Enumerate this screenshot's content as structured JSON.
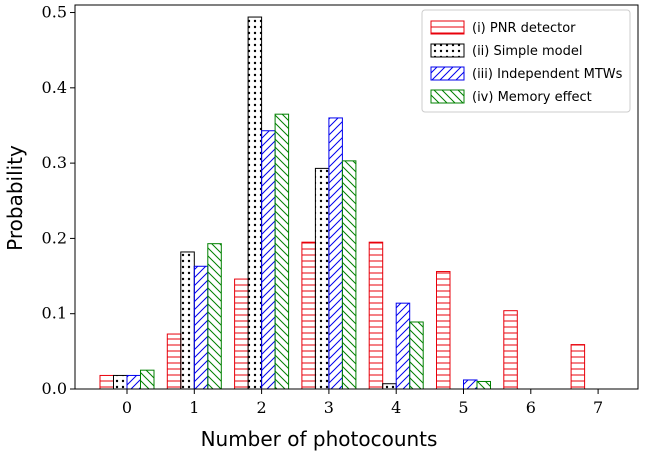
{
  "chart_data": {
    "type": "bar",
    "xlabel": "Number of photocounts",
    "ylabel": "Probability",
    "categories": [
      "0",
      "1",
      "2",
      "3",
      "4",
      "5",
      "6",
      "7"
    ],
    "ylim": [
      0,
      0.51
    ],
    "yticks": [
      "0.0",
      "0.1",
      "0.2",
      "0.3",
      "0.4",
      "0.5"
    ],
    "grid": false,
    "legend_position": "top-right",
    "series": [
      {
        "name": "(i) PNR detector",
        "color": "#e8000b",
        "hatch": "horizontal",
        "values": [
          0.018,
          0.073,
          0.146,
          0.195,
          0.195,
          0.156,
          0.104,
          0.059
        ]
      },
      {
        "name": "(ii) Simple model",
        "color": "#000000",
        "hatch": "dots",
        "values": [
          0.018,
          0.182,
          0.494,
          0.293,
          0.007,
          0.0,
          0.0,
          0.0
        ]
      },
      {
        "name": "(iii) Independent MTWs",
        "color": "#0000ee",
        "hatch": "diagonal",
        "values": [
          0.018,
          0.163,
          0.343,
          0.36,
          0.114,
          0.012,
          0.0,
          0.0
        ]
      },
      {
        "name": "(iv) Memory effect",
        "color": "#008000",
        "hatch": "back-diagonal",
        "values": [
          0.025,
          0.193,
          0.365,
          0.303,
          0.089,
          0.01,
          0.0,
          0.0
        ]
      }
    ]
  }
}
